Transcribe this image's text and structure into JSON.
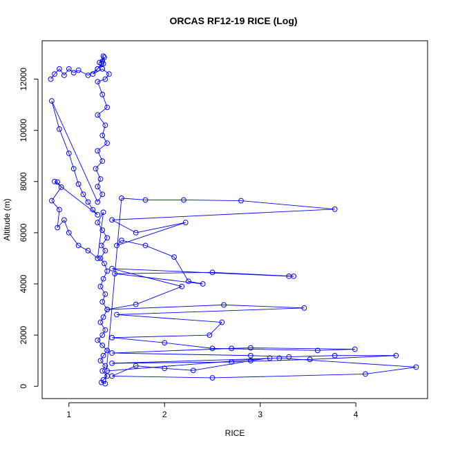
{
  "chart_data": {
    "type": "scatter",
    "title": "ORCAS RF12-19 RICE (Log)",
    "xlabel": "RICE",
    "ylabel": "Altitude (m)",
    "xlim": [
      0.72,
      4.75
    ],
    "ylim": [
      -480,
      13500
    ],
    "xticks": [
      1,
      2,
      3,
      4
    ],
    "yticks": [
      0,
      2000,
      4000,
      6000,
      8000,
      10000,
      12000
    ],
    "grid": false,
    "color": "#0000ff",
    "series": [
      {
        "values": [
          [
            0.81,
            12000
          ],
          [
            0.85,
            12200
          ],
          [
            0.9,
            12400
          ],
          [
            0.95,
            12150
          ],
          [
            1.0,
            12400
          ],
          [
            1.05,
            12250
          ],
          [
            1.1,
            12350
          ],
          [
            1.2,
            12150
          ],
          [
            1.3,
            12400
          ],
          [
            1.34,
            12600
          ],
          [
            1.36,
            12900
          ],
          [
            1.35,
            12700
          ],
          [
            1.32,
            12650
          ],
          [
            1.37,
            12850
          ],
          [
            1.36,
            12600
          ],
          [
            1.3,
            12400
          ],
          [
            1.25,
            12200
          ],
          [
            1.35,
            12400
          ],
          [
            1.42,
            12200
          ],
          [
            1.38,
            12000
          ],
          [
            1.3,
            11900
          ],
          [
            1.35,
            11400
          ],
          [
            1.4,
            10900
          ],
          [
            1.3,
            10600
          ],
          [
            1.38,
            10200
          ],
          [
            1.35,
            9800
          ],
          [
            1.4,
            9500
          ],
          [
            1.3,
            9200
          ],
          [
            1.35,
            8800
          ],
          [
            1.28,
            8500
          ],
          [
            1.33,
            8100
          ],
          [
            1.3,
            7800
          ],
          [
            1.35,
            7500
          ],
          [
            1.3,
            7200
          ],
          [
            0.82,
            11150
          ],
          [
            0.9,
            10050
          ],
          [
            1.0,
            9100
          ],
          [
            1.05,
            8500
          ],
          [
            1.1,
            7900
          ],
          [
            1.15,
            7500
          ],
          [
            1.2,
            7200
          ],
          [
            1.25,
            6900
          ],
          [
            1.3,
            6700
          ],
          [
            0.85,
            8000
          ],
          [
            0.88,
            7980
          ],
          [
            0.92,
            7780
          ],
          [
            0.82,
            7250
          ],
          [
            0.9,
            6900
          ],
          [
            0.88,
            6200
          ],
          [
            0.95,
            6500
          ],
          [
            1.0,
            6000
          ],
          [
            1.1,
            5500
          ],
          [
            1.2,
            5300
          ],
          [
            1.3,
            5000
          ],
          [
            1.36,
            6800
          ],
          [
            1.3,
            6400
          ],
          [
            1.35,
            6100
          ],
          [
            1.4,
            5800
          ],
          [
            1.34,
            5500
          ],
          [
            1.38,
            5300
          ],
          [
            1.33,
            5000
          ],
          [
            1.37,
            4800
          ],
          [
            1.4,
            4500
          ],
          [
            1.36,
            4200
          ],
          [
            1.33,
            3900
          ],
          [
            1.38,
            3600
          ],
          [
            1.35,
            3300
          ],
          [
            1.4,
            3000
          ],
          [
            1.36,
            2700
          ],
          [
            1.33,
            2500
          ],
          [
            1.38,
            2200
          ],
          [
            1.35,
            2000
          ],
          [
            1.3,
            1800
          ],
          [
            1.35,
            1600
          ],
          [
            1.4,
            1400
          ],
          [
            1.36,
            1200
          ],
          [
            1.33,
            1000
          ],
          [
            1.38,
            800
          ],
          [
            1.35,
            600
          ],
          [
            1.4,
            400
          ],
          [
            1.36,
            250
          ],
          [
            1.34,
            150
          ],
          [
            1.38,
            100
          ],
          [
            1.55,
            7350
          ],
          [
            1.8,
            7280
          ],
          [
            2.2,
            7280
          ],
          [
            2.8,
            7250
          ],
          [
            3.78,
            6920
          ],
          [
            1.45,
            6500
          ],
          [
            1.7,
            6000
          ],
          [
            2.22,
            6400
          ],
          [
            1.5,
            5500
          ],
          [
            1.55,
            5700
          ],
          [
            1.8,
            5500
          ],
          [
            2.1,
            5050
          ],
          [
            2.25,
            4100
          ],
          [
            2.4,
            4000
          ],
          [
            1.48,
            4400
          ],
          [
            2.5,
            4450
          ],
          [
            3.35,
            4300
          ],
          [
            3.3,
            4300
          ],
          [
            1.45,
            4600
          ],
          [
            2.18,
            3900
          ],
          [
            1.7,
            3200
          ],
          [
            1.4,
            3000
          ],
          [
            2.62,
            3180
          ],
          [
            3.46,
            3060
          ],
          [
            1.5,
            2800
          ],
          [
            2.6,
            2500
          ],
          [
            2.47,
            2000
          ],
          [
            1.45,
            1900
          ],
          [
            2.0,
            1700
          ],
          [
            2.5,
            1480
          ],
          [
            3.6,
            1400
          ],
          [
            3.99,
            1450
          ],
          [
            2.9,
            1500
          ],
          [
            2.7,
            1480
          ],
          [
            1.45,
            1300
          ],
          [
            2.9,
            1200
          ],
          [
            3.3,
            1150
          ],
          [
            3.78,
            1200
          ],
          [
            4.42,
            1200
          ],
          [
            3.52,
            1050
          ],
          [
            2.7,
            950
          ],
          [
            1.45,
            900
          ],
          [
            3.2,
            1100
          ],
          [
            4.63,
            750
          ],
          [
            4.1,
            480
          ],
          [
            2.5,
            330
          ],
          [
            1.45,
            400
          ],
          [
            1.7,
            800
          ],
          [
            2.0,
            700
          ],
          [
            2.3,
            620
          ],
          [
            2.9,
            1000
          ],
          [
            3.1,
            1100
          ],
          [
            1.4,
            600
          ]
        ]
      }
    ]
  }
}
